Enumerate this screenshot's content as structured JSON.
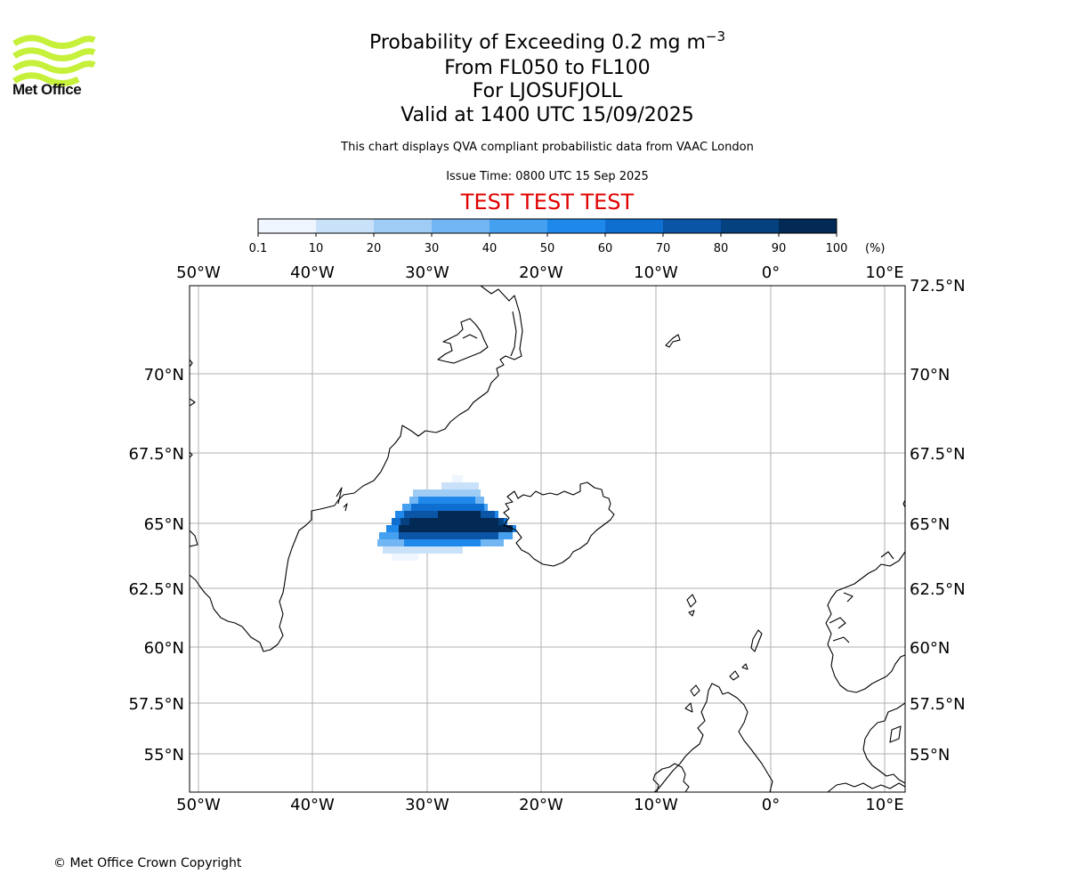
{
  "header": {
    "title_main": "Probability of Exceeding 0.2 mg m",
    "title_sup": "−3",
    "levels": "From FL050 to FL100",
    "location": "For LJOSUFJOLL",
    "valid": "Valid at 1400 UTC 15/09/2025",
    "description": "This chart displays QVA compliant probabilistic data from VAAC London",
    "issue_time": "Issue Time: 0800 UTC 15 Sep 2025",
    "test_banner": "TEST TEST TEST"
  },
  "logo": {
    "text": "Met Office",
    "color": "#c6f03a"
  },
  "colorbar": {
    "labels": [
      "0.1",
      "10",
      "20",
      "30",
      "40",
      "50",
      "60",
      "70",
      "80",
      "90",
      "100"
    ],
    "unit": "(%)",
    "colors": [
      "#f0f6ff",
      "#c9e2f9",
      "#9fccf5",
      "#72b6f3",
      "#46a0f0",
      "#1f88eb",
      "#0f6fd0",
      "#0a55a6",
      "#06417f",
      "#022a55"
    ]
  },
  "map": {
    "lon_labels": [
      "50°W",
      "40°W",
      "30°W",
      "20°W",
      "10°W",
      "0°",
      "10°E"
    ],
    "lat_labels": [
      "70°N",
      "67.5°N",
      "65°N",
      "62.5°N",
      "60°N",
      "57.5°N",
      "55°N"
    ],
    "top_right_lat_label": "72.5°N",
    "grid": true,
    "plume": {
      "max_probability_percent": 100,
      "source": "LJOSUFJOLL"
    }
  },
  "footer": {
    "copyright": "© Met Office Crown Copyright"
  }
}
